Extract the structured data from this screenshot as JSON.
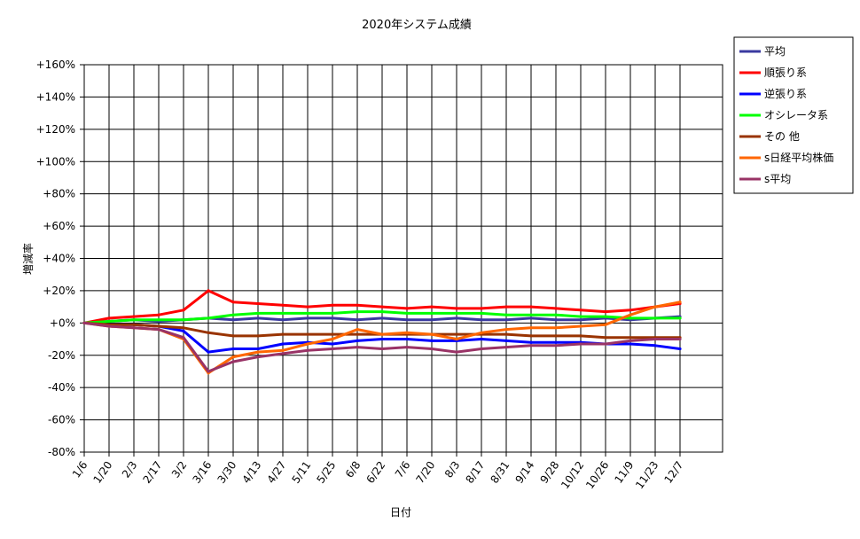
{
  "chart_data": {
    "type": "line",
    "title": "2020年システム成績",
    "xlabel": "日付",
    "ylabel": "増減率",
    "ylim": [
      -80,
      160
    ],
    "yticks": [
      160,
      140,
      120,
      100,
      80,
      60,
      40,
      20,
      0,
      -20,
      -40,
      -60,
      -80
    ],
    "ytick_labels": [
      "+160%",
      "+140%",
      "+120%",
      "+100%",
      "+80%",
      "+60%",
      "+40%",
      "+20%",
      "+0%",
      "-20%",
      "-40%",
      "-60%",
      "-80%"
    ],
    "x_ticks": [
      "1/6",
      "1/20",
      "2/3",
      "2/17",
      "3/2",
      "3/16",
      "3/30",
      "4/13",
      "4/27",
      "5/11",
      "5/25",
      "6/8",
      "6/22",
      "7/6",
      "7/20",
      "8/3",
      "8/17",
      "8/31",
      "9/14",
      "9/28",
      "10/12",
      "10/26",
      "11/9",
      "11/23",
      "12/7"
    ],
    "grid": true,
    "legend_position": "right",
    "legend": [
      {
        "label": "平均",
        "color": "#3a3aa0"
      },
      {
        "label": "順張り系",
        "color": "#ff0000"
      },
      {
        "label": "逆張り系",
        "color": "#0000ff"
      },
      {
        "label": "オシレータ系",
        "color": "#00ff00"
      },
      {
        "label": "その 他",
        "color": "#993300"
      },
      {
        "label": "s日経平均株価",
        "color": "#ff6600"
      },
      {
        "label": "s平均",
        "color": "#993366"
      }
    ],
    "series": [
      {
        "name": "平均",
        "color": "#3a3aa0",
        "values": [
          0,
          1,
          2,
          1,
          2,
          3,
          2,
          3,
          2,
          3,
          3,
          2,
          3,
          2,
          2,
          3,
          2,
          2,
          3,
          2,
          2,
          3,
          2,
          3,
          4
        ]
      },
      {
        "name": "順張り系",
        "color": "#ff0000",
        "values": [
          0,
          3,
          4,
          5,
          8,
          20,
          13,
          12,
          11,
          10,
          11,
          11,
          10,
          9,
          10,
          9,
          9,
          10,
          10,
          9,
          8,
          7,
          8,
          10,
          12
        ]
      },
      {
        "name": "逆張り系",
        "color": "#0000ff",
        "values": [
          0,
          -1,
          -1,
          -2,
          -5,
          -18,
          -16,
          -16,
          -13,
          -12,
          -13,
          -11,
          -10,
          -10,
          -11,
          -11,
          -10,
          -11,
          -12,
          -12,
          -12,
          -13,
          -13,
          -14,
          -16
        ]
      },
      {
        "name": "オシレータ系",
        "color": "#00ff00",
        "values": [
          0,
          1,
          2,
          2,
          2,
          3,
          5,
          6,
          6,
          6,
          6,
          7,
          7,
          6,
          6,
          6,
          6,
          5,
          5,
          5,
          4,
          4,
          3,
          3,
          3
        ]
      },
      {
        "name": "その 他",
        "color": "#993300",
        "values": [
          0,
          -1,
          -1,
          -2,
          -3,
          -6,
          -8,
          -8,
          -7,
          -7,
          -7,
          -7,
          -7,
          -7,
          -7,
          -7,
          -7,
          -7,
          -8,
          -8,
          -8,
          -9,
          -9,
          -9,
          -9
        ]
      },
      {
        "name": "s日経平均株価",
        "color": "#ff6600",
        "values": [
          0,
          -2,
          -3,
          -4,
          -10,
          -31,
          -21,
          -18,
          -17,
          -13,
          -10,
          -4,
          -7,
          -6,
          -7,
          -10,
          -6,
          -4,
          -3,
          -3,
          -2,
          -1,
          5,
          10,
          13
        ]
      },
      {
        "name": "s平均",
        "color": "#993366",
        "values": [
          0,
          -2,
          -3,
          -4,
          -9,
          -30,
          -24,
          -21,
          -19,
          -17,
          -16,
          -15,
          -16,
          -15,
          -16,
          -18,
          -16,
          -15,
          -14,
          -14,
          -13,
          -13,
          -11,
          -10,
          -10
        ]
      }
    ]
  }
}
